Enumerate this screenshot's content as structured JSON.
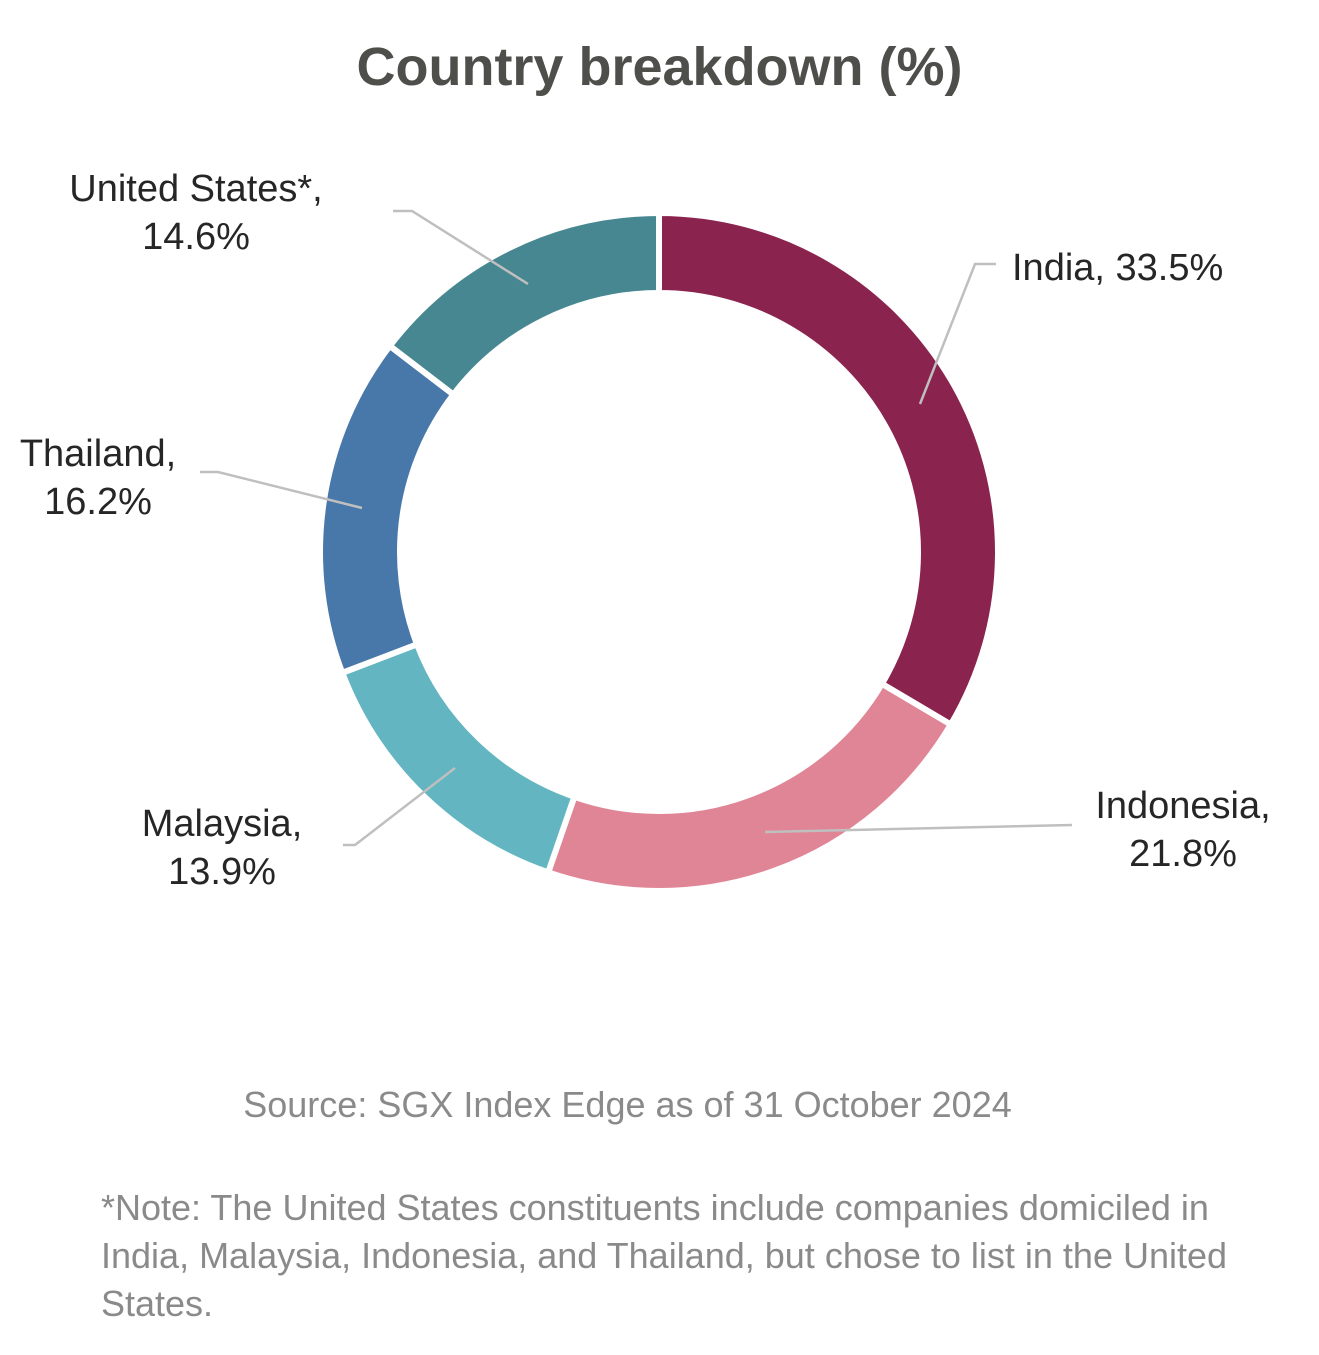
{
  "chart_data": {
    "type": "pie",
    "variant": "donut",
    "title": "Country breakdown (%)",
    "slices": [
      {
        "name": "India",
        "value": 33.5,
        "color": "#8b234f",
        "label_lines": [
          "India, 33.5%"
        ]
      },
      {
        "name": "Indonesia",
        "value": 21.8,
        "color": "#e08596",
        "label_lines": [
          "Indonesia,",
          "21.8%"
        ]
      },
      {
        "name": "Malaysia",
        "value": 13.9,
        "color": "#62b5c1",
        "label_lines": [
          "Malaysia,",
          "13.9%"
        ]
      },
      {
        "name": "Thailand",
        "value": 16.2,
        "color": "#4878a9",
        "label_lines": [
          "Thailand,",
          "16.2%"
        ]
      },
      {
        "name": "United States*",
        "value": 14.6,
        "color": "#468791",
        "label_lines": [
          "United States*,",
          "14.6%"
        ]
      }
    ],
    "start_angle": "12 o'clock",
    "direction": "clockwise",
    "legend": "none"
  },
  "source": "Source: SGX Index Edge as of 31 October 2024",
  "footnote": "*Note: The United States constituents include companies domiciled in India, Malaysia, Indonesia, and Thailand, but chose to list in the United States."
}
